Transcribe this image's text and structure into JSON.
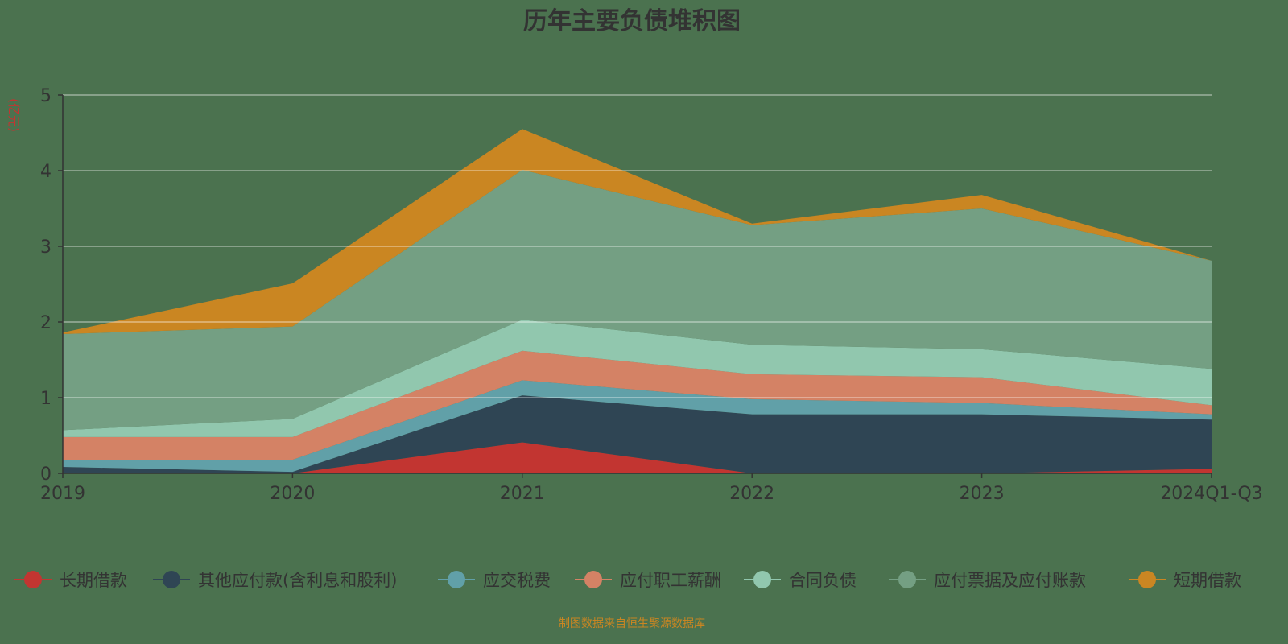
{
  "chart_data": {
    "type": "area",
    "stacked": true,
    "title": "历年主要负债堆积图",
    "ylabel": "(亿元)",
    "xlabel": "",
    "categories": [
      "2019",
      "2020",
      "2021",
      "2022",
      "2023",
      "2024Q1-Q3"
    ],
    "ylim": [
      0,
      5
    ],
    "yticks": [
      0,
      1,
      2,
      3,
      4,
      5
    ],
    "grid": true,
    "legend_position": "bottom",
    "series": [
      {
        "name": "长期借款",
        "color": "#c23531",
        "values": [
          0,
          0,
          0.41,
          0,
          0,
          0.06
        ]
      },
      {
        "name": "其他应付款(含利息和股利)",
        "color": "#2f4554",
        "values": [
          0.085,
          0.02,
          0.62,
          0.78,
          0.78,
          0.65
        ]
      },
      {
        "name": "应交税费",
        "color": "#61a0a8",
        "values": [
          0.085,
          0.16,
          0.2,
          0.2,
          0.15,
          0.07
        ]
      },
      {
        "name": "应付职工薪酬",
        "color": "#d48265",
        "values": [
          0.31,
          0.3,
          0.39,
          0.33,
          0.34,
          0.12
        ]
      },
      {
        "name": "合同负债",
        "color": "#91c7ae",
        "values": [
          0.09,
          0.24,
          0.41,
          0.39,
          0.37,
          0.48
        ]
      },
      {
        "name": "应付票据及应付账款",
        "color": "#749f83",
        "values": [
          1.27,
          1.22,
          1.98,
          1.58,
          1.86,
          1.43
        ]
      },
      {
        "name": "短期借款",
        "color": "#ca8622",
        "values": [
          0.02,
          0.57,
          0.54,
          0.02,
          0.18,
          0
        ]
      }
    ],
    "source_note": "制图数据来自恒生聚源数据库"
  },
  "colors": {
    "background": "#4b724f",
    "text": "#333333",
    "ylabel": "#c23531",
    "source": "#ca8622"
  }
}
